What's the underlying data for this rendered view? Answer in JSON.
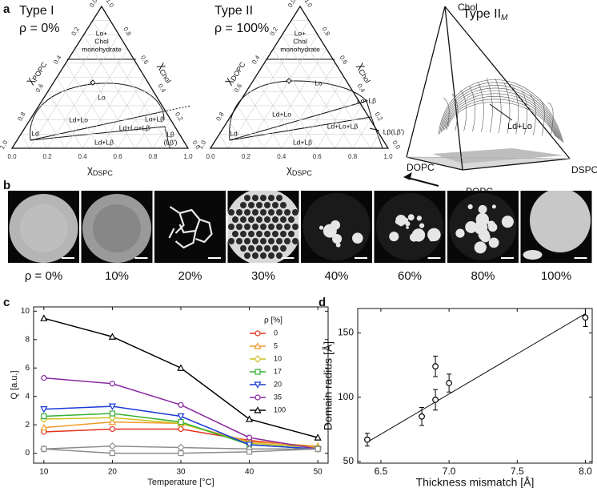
{
  "panel_labels": [
    "a",
    "b",
    "c",
    "d"
  ],
  "ternary": [
    {
      "title": "Type I",
      "rho": "ρ = 0%",
      "tick_labels": [
        "0.0",
        "0.2",
        "0.4",
        "0.6",
        "0.8",
        "1.0"
      ],
      "axis_symbol": "χ",
      "axis_subs": [
        "POPC",
        "Chol",
        "DSPC"
      ],
      "regions": [
        [
          "Lo+",
          "Chol",
          "monohydrate"
        ],
        [
          "Lo"
        ],
        [
          "Ld+Lo"
        ],
        [
          "Lo+Lβ"
        ],
        [
          "Ld+Lo+Lβ"
        ],
        [
          "Ld"
        ],
        [
          "Ld+Lβ"
        ],
        [
          "Lβ",
          "(Lβ')"
        ]
      ]
    },
    {
      "title": "Type II",
      "rho": "ρ = 100%",
      "tick_labels": [
        "0.0",
        "0.2",
        "0.4",
        "0.6",
        "0.8",
        "1.0"
      ],
      "axis_symbol": "χ",
      "axis_subs": [
        "DOPC",
        "Chol",
        "DSPC"
      ],
      "regions": [
        [
          "Lo+",
          "Chol",
          "monohydrate"
        ],
        [
          "Lo"
        ],
        [
          "Ld+Lo"
        ],
        [
          "Lo+Lβ"
        ],
        [
          "Ld+Lo+Lβ"
        ],
        [
          "Lβ(Lβ')"
        ],
        [
          "Ld"
        ],
        [
          "Ld+Lβ"
        ]
      ]
    }
  ],
  "tetrahedron": {
    "title": "Type II",
    "title_sub": "M",
    "vertices": [
      "Chol",
      "DOPC",
      "POPC",
      "DSPC"
    ],
    "region": "Ld+Lo",
    "arrow_label": "ρ"
  },
  "micrographs": {
    "labels": [
      "ρ = 0%",
      "10%",
      "20%",
      "30%",
      "40%",
      "60%",
      "80%",
      "100%"
    ]
  },
  "chart_data": [
    {
      "type": "line",
      "x_label": "Temperature [°C]",
      "y_label": "Q [a.u.]",
      "x": [
        10,
        20,
        30,
        40,
        50
      ],
      "xlim": [
        8.5,
        51.5
      ],
      "xticks": [
        10,
        20,
        30,
        40,
        50
      ],
      "ylim": [
        -0.7,
        10.3
      ],
      "yticks": [
        0,
        2,
        4,
        6,
        8,
        10
      ],
      "legend_title": "ρ [%]",
      "legend": "upper right",
      "series": [
        {
          "name": "0",
          "color": "#e3301c",
          "marker": "circle",
          "values": [
            1.5,
            1.7,
            1.7,
            0.9,
            0.4
          ]
        },
        {
          "name": "5",
          "color": "#f09a2a",
          "marker": "triangle-up",
          "values": [
            1.8,
            2.2,
            2.1,
            0.8,
            0.5
          ]
        },
        {
          "name": "10",
          "color": "#c9c21e",
          "marker": "diamond",
          "values": [
            2.4,
            2.5,
            2.1,
            0.7,
            0.4
          ]
        },
        {
          "name": "17",
          "color": "#34b034",
          "marker": "square",
          "values": [
            2.6,
            2.8,
            2.2,
            0.6,
            0.3
          ]
        },
        {
          "name": "20",
          "color": "#1b3ad8",
          "marker": "triangle-down",
          "values": [
            3.1,
            3.3,
            2.6,
            0.6,
            0.3
          ]
        },
        {
          "name": "35",
          "color": "#8a27a0",
          "marker": "circle",
          "values": [
            5.3,
            4.9,
            3.4,
            1.1,
            0.3
          ]
        },
        {
          "name": "100",
          "color": "#000000",
          "marker": "triangle-up",
          "values": [
            9.5,
            8.2,
            6.0,
            2.4,
            1.1
          ]
        },
        {
          "color": "#8c8c8c",
          "marker": "diamond",
          "values": [
            0.3,
            0.5,
            0.4,
            0.3,
            0.3
          ]
        },
        {
          "color": "#8c8c8c",
          "marker": "square",
          "values": [
            0.3,
            0.0,
            0.0,
            0.1,
            0.3
          ]
        }
      ]
    },
    {
      "type": "scatter",
      "x_label": "Thickness mismatch [Å]",
      "y_label": "Domain radius [Å]",
      "x": [
        6.4,
        6.8,
        6.9,
        6.9,
        7.0,
        8.0
      ],
      "series": [
        {
          "values": [
            67,
            85,
            98,
            124,
            111,
            162
          ],
          "errors": [
            5,
            7,
            8,
            8,
            7,
            7
          ],
          "color": "#000000"
        }
      ],
      "fit": {
        "x": [
          6.4,
          8.0
        ],
        "values": [
          65,
          165
        ]
      },
      "xlim": [
        6.33,
        8.05
      ],
      "xticks": [
        6.5,
        {
          "value": 7,
          "label": "7.0"
        },
        7.5,
        {
          "value": 8,
          "label": "8.0"
        }
      ],
      "ylim": [
        48.7,
        169
      ],
      "yticks": [
        50,
        100,
        150
      ]
    }
  ]
}
